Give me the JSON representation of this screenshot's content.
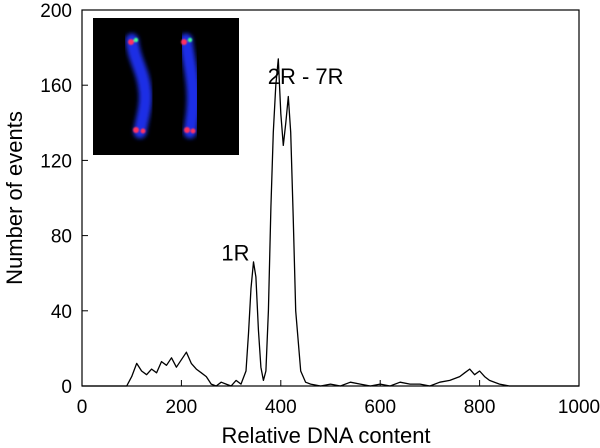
{
  "chart_data": {
    "type": "line",
    "title": "",
    "xlabel": "Relative DNA content",
    "ylabel": "Number of events",
    "xlim": [
      0,
      1000
    ],
    "ylim": [
      0,
      200
    ],
    "xticks": [
      0,
      200,
      400,
      600,
      800,
      1000
    ],
    "yticks": [
      0,
      40,
      80,
      120,
      160,
      200
    ],
    "grid": false,
    "legend": "none",
    "line_color": "#000000",
    "series": [
      {
        "x": [
          0,
          90,
          100,
          110,
          120,
          130,
          140,
          150,
          160,
          170,
          180,
          190,
          200,
          210,
          220,
          230,
          240,
          250,
          260,
          270,
          280,
          290,
          300,
          310,
          320,
          330,
          335,
          340,
          345,
          350,
          355,
          360,
          365,
          370,
          375,
          380,
          385,
          390,
          395,
          400,
          405,
          410,
          415,
          420,
          425,
          430,
          440,
          450,
          460,
          480,
          500,
          520,
          540,
          560,
          580,
          600,
          620,
          640,
          660,
          680,
          700,
          720,
          740,
          760,
          770,
          780,
          790,
          800,
          810,
          820,
          840,
          860,
          880,
          900,
          1000
        ],
        "values": [
          0,
          0,
          5,
          12,
          8,
          6,
          9,
          7,
          13,
          11,
          15,
          10,
          14,
          18,
          12,
          9,
          7,
          5,
          1,
          0,
          2,
          1,
          0,
          3,
          1,
          8,
          28,
          52,
          66,
          58,
          30,
          10,
          3,
          8,
          40,
          95,
          135,
          160,
          174,
          145,
          128,
          140,
          154,
          135,
          90,
          40,
          8,
          2,
          1,
          0,
          1,
          0,
          2,
          1,
          0,
          1,
          0,
          2,
          1,
          1,
          0,
          2,
          3,
          5,
          7,
          9,
          6,
          8,
          5,
          3,
          1,
          0,
          0,
          0,
          0
        ]
      }
    ],
    "annotations": [
      {
        "text": "1R",
        "x": 345,
        "y": 71
      },
      {
        "text": "2R - 7R",
        "x": 450,
        "y": 165
      }
    ],
    "inset": {
      "background": "#000000",
      "content": "microscopy-image-chromosomes"
    }
  }
}
